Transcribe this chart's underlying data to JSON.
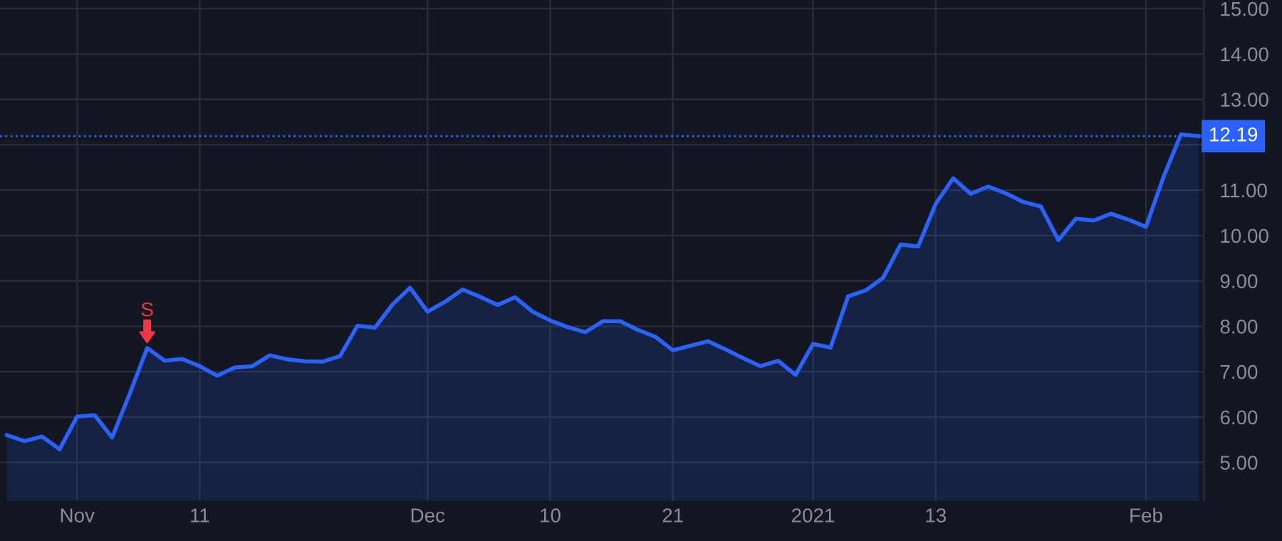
{
  "chart_data": {
    "type": "area",
    "categories": [
      null,
      null,
      null,
      null,
      "Nov",
      null,
      null,
      null,
      null,
      null,
      null,
      "11",
      null,
      null,
      null,
      null,
      null,
      null,
      null,
      null,
      null,
      null,
      null,
      null,
      "Dec",
      null,
      null,
      null,
      null,
      null,
      null,
      "10",
      null,
      null,
      null,
      null,
      null,
      null,
      "21",
      null,
      null,
      null,
      null,
      null,
      null,
      null,
      "2021",
      null,
      null,
      null,
      null,
      null,
      null,
      "13",
      null,
      null,
      null,
      null,
      null,
      null,
      null,
      null,
      null,
      null,
      null,
      "Feb",
      null,
      null,
      null
    ],
    "series": [
      {
        "color": "#2962ff",
        "values": [
          5.6,
          5.47,
          5.57,
          5.29,
          6.01,
          6.04,
          5.55,
          6.51,
          7.52,
          7.24,
          7.28,
          7.12,
          6.91,
          7.09,
          7.12,
          7.36,
          7.27,
          7.23,
          7.22,
          7.34,
          8.01,
          7.97,
          8.48,
          8.85,
          8.32,
          8.54,
          8.81,
          8.65,
          8.47,
          8.64,
          8.32,
          8.13,
          7.98,
          7.87,
          8.11,
          8.11,
          7.92,
          7.77,
          7.47,
          7.57,
          7.67,
          7.49,
          7.3,
          7.12,
          7.24,
          6.93,
          7.61,
          7.53,
          8.66,
          8.79,
          9.07,
          9.8,
          9.76,
          10.7,
          11.26,
          10.92,
          11.08,
          10.93,
          10.74,
          10.64,
          9.9,
          10.37,
          10.33,
          10.48,
          10.35,
          10.19,
          11.29,
          12.23,
          12.19
        ]
      }
    ],
    "ylim": [
      4.15,
      15.19
    ],
    "yticks": [
      {
        "value": 5,
        "label": "5.00"
      },
      {
        "value": 6,
        "label": "6.00"
      },
      {
        "value": 7,
        "label": "7.00"
      },
      {
        "value": 8,
        "label": "8.00"
      },
      {
        "value": 9,
        "label": "9.00"
      },
      {
        "value": 10,
        "label": "10.00"
      },
      {
        "value": 11,
        "label": "11.00"
      },
      {
        "value": 12,
        "label": null
      },
      {
        "value": 13,
        "label": "13.00"
      },
      {
        "value": 14,
        "label": "14.00"
      },
      {
        "value": 15,
        "label": "15.00"
      }
    ],
    "ref_lines": [
      {
        "axis": "y",
        "value": 12.19,
        "label": "12.19",
        "color": "#2962ff",
        "line_style": "dotted"
      }
    ],
    "annotations": [
      {
        "text": "S",
        "y": 7.52
      }
    ],
    "grid": true,
    "legend": false
  }
}
